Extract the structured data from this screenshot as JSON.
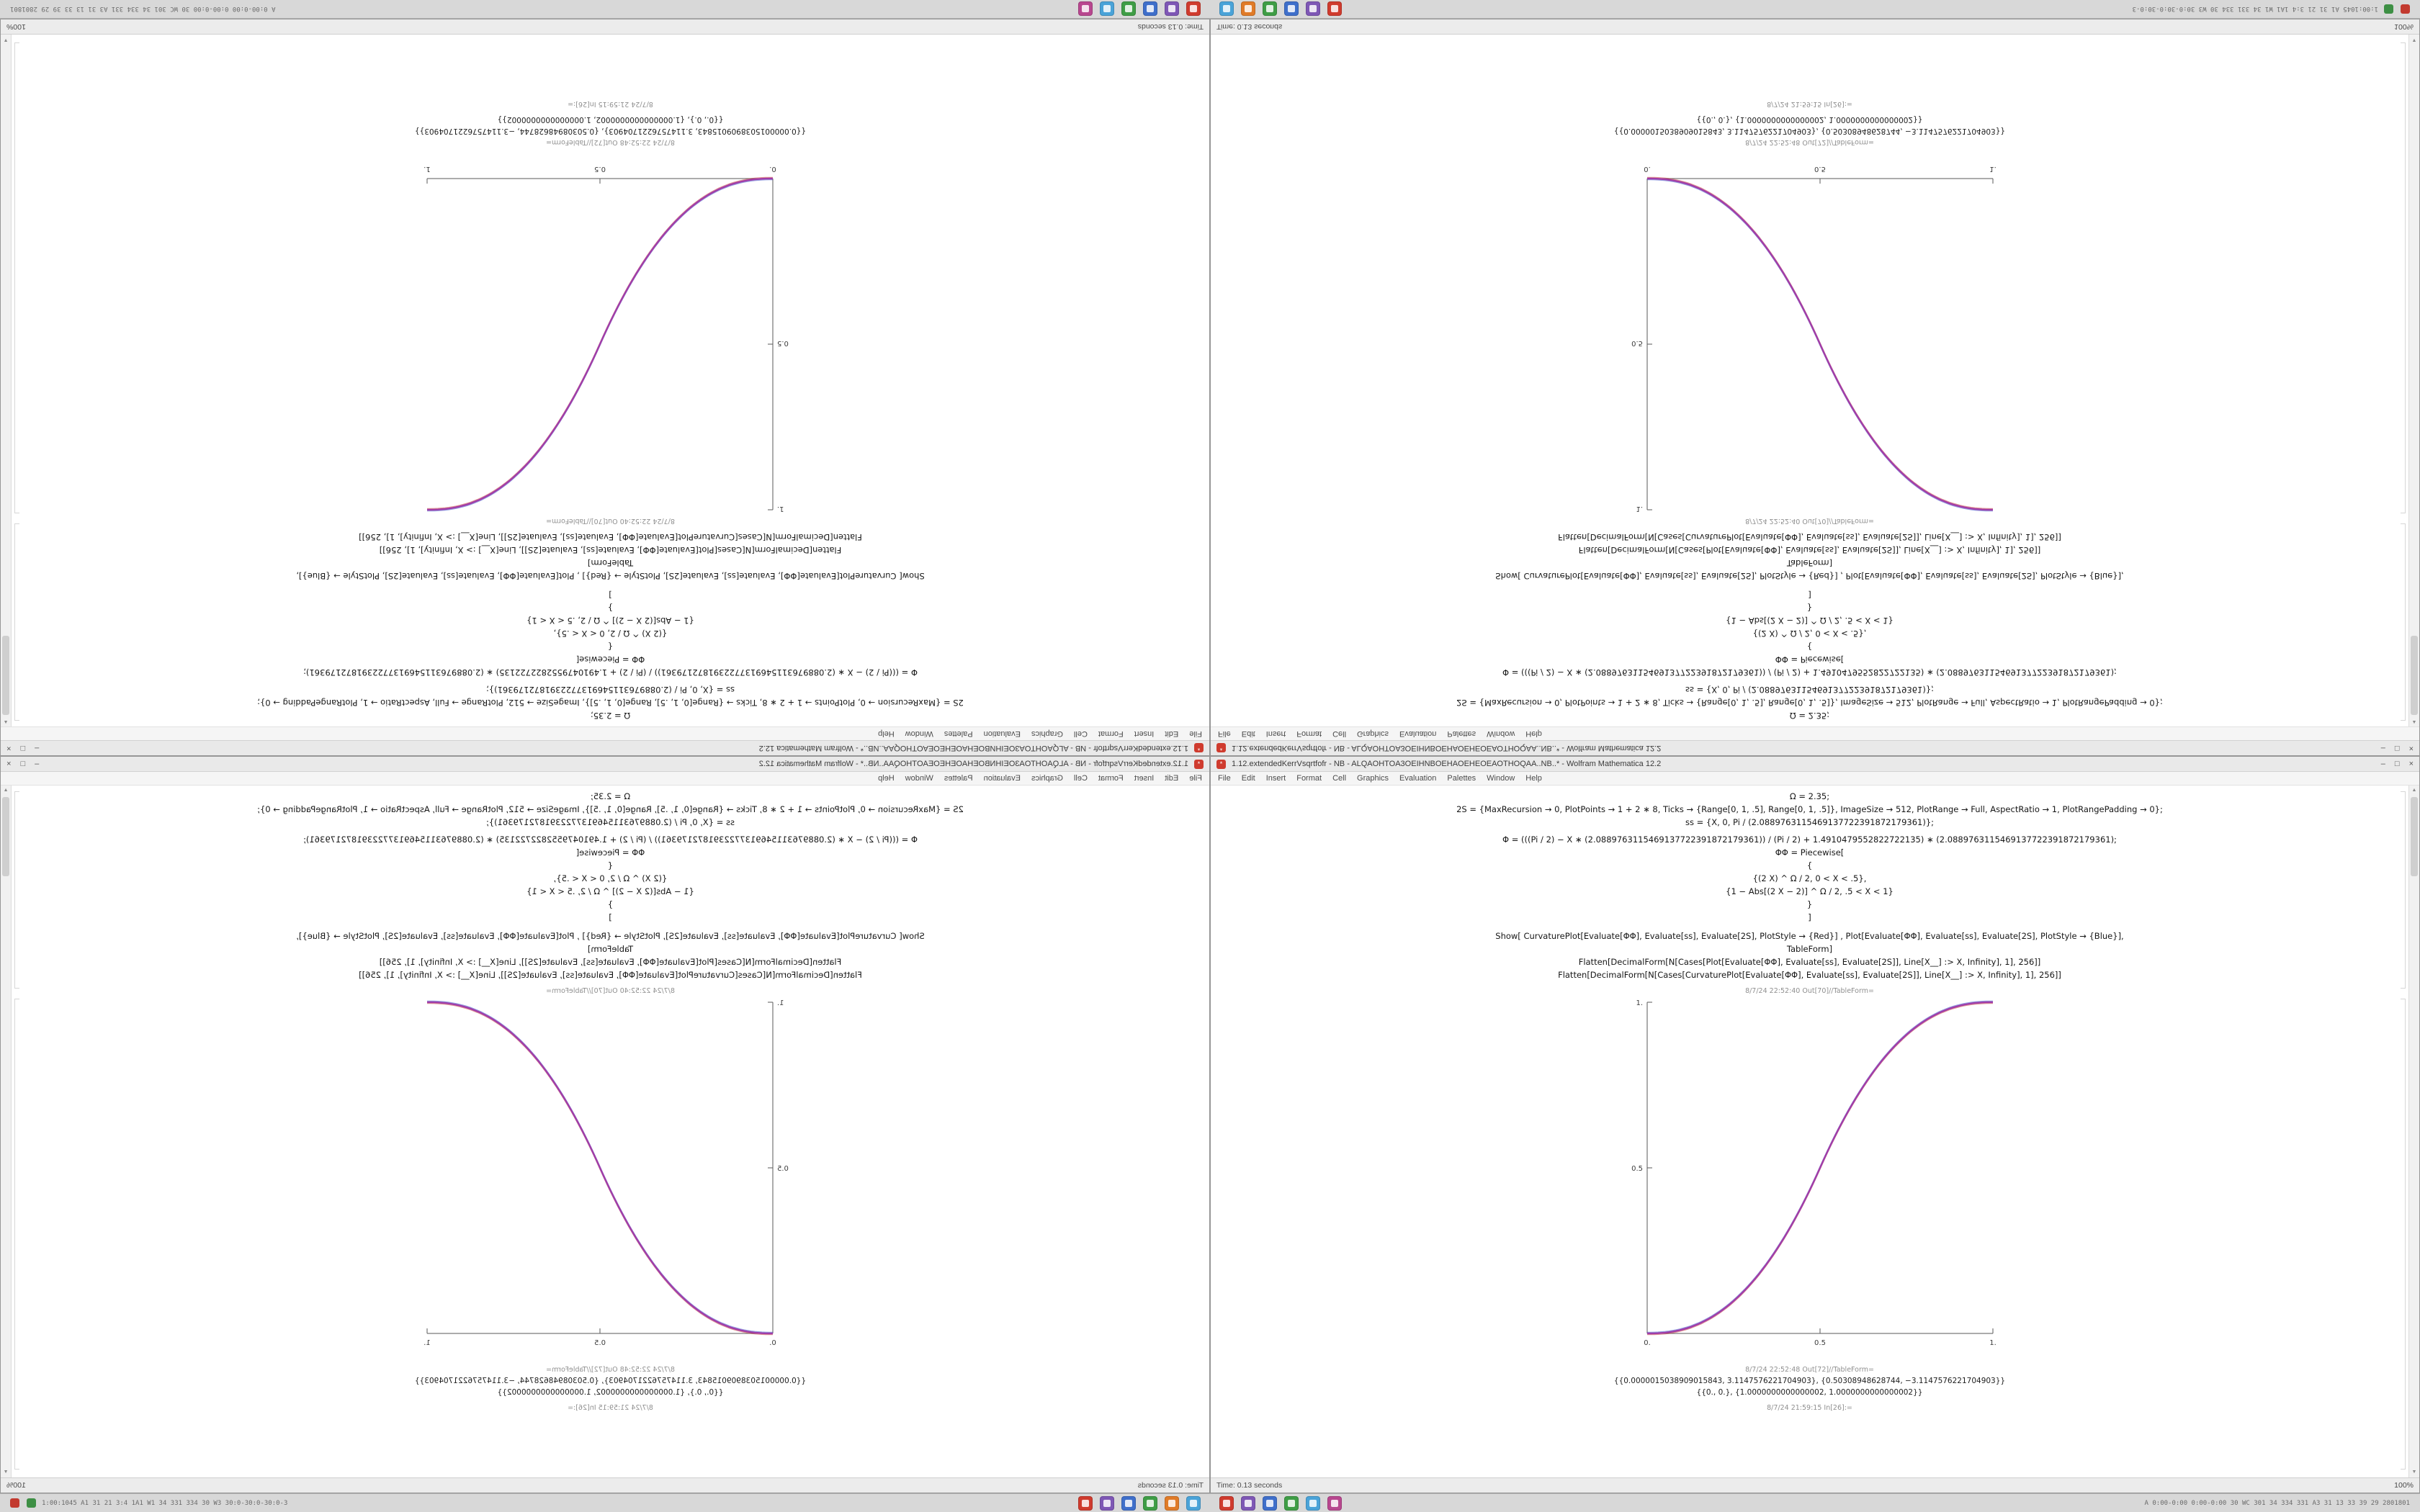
{
  "desktop": {
    "taskbar": {
      "stats_left": "1:00:1045 A1 31 21 3:4 1A1 W1 34 331 334 30 W3 30:0-30:0-30:0-3",
      "stats_right": "A 0:00-0:00 0:00-0:00 30 WC 301 34 334 331 A3 31 13 33 39 29 2801801",
      "tray_icons": [
        "#c23a2f",
        "#3d8f44"
      ],
      "group1": [
        "#cf3b2e",
        "#7e57b5",
        "#3f6fca",
        "#3f9d46",
        "#e07b28",
        "#4aa3d8"
      ],
      "group2": [
        "#cf3b2e",
        "#7e57b5",
        "#3f6fca",
        "#3f9d46",
        "#4aa3d8",
        "#b8478f"
      ]
    }
  },
  "window": {
    "title": "1.12.extendedKerrVsqrtfofr - NB - ALQAOHTOA3OEIHNBOEHAOEHEOEAOTHOQAA..NB..* - Wolfram Mathematica 12.2",
    "controls": {
      "minimize": "–",
      "maximize": "□",
      "close": "×"
    },
    "menu": [
      "File",
      "Edit",
      "Insert",
      "Format",
      "Cell",
      "Graphics",
      "Evaluation",
      "Palettes",
      "Window",
      "Help"
    ],
    "code_lines": [
      "Ω = 2.35;",
      "2S = {MaxRecursion → 0, PlotPoints → 1 + 2 ∗ 8, Ticks → {Range[0, 1, .5], Range[0, 1, .5]}, ImageSize → 512, PlotRange → Full, AspectRatio → 1, PlotRangePadding → 0};",
      "ss = {X, 0, Pi / (2.0889763115469137722391872179361)};",
      "Φ = (((Pi / 2) − X ∗ (2.0889763115469137722391872179361)) / (Pi / 2) + 1.4910479552822722135) ∗ (2.0889763115469137722391872179361);",
      "ΦΦ = Piecewise[",
      "{",
      "{(2 X) ^ Ω / 2, 0 < X < .5},",
      "{1 − Abs[(2 X − 2)] ^ Ω / 2, .5 < X < 1}",
      "}",
      "]",
      "Show[   CurvaturePlot[Evaluate[ΦΦ], Evaluate[ss], Evaluate[2S], PlotStyle → {Red}]  ,   Plot[Evaluate[ΦΦ], Evaluate[ss], Evaluate[2S], PlotStyle → {Blue}],",
      "TableForm]",
      "Flatten[DecimalForm[N[Cases[Plot[Evaluate[ΦΦ], Evaluate[ss], Evaluate[2S]], Line[X__] :> X, Infinity], 1], 256]]",
      "Flatten[DecimalForm[N[Cases[CurvaturePlot[Evaluate[ΦΦ], Evaluate[ss], Evaluate[2S]], Line[X__] :> X, Infinity], 1], 256]]"
    ],
    "cells": {
      "out1_label": "8/7/24 22:52:40  Out[70]//TableForm=",
      "out2_label": "8/7/24 22:52:48  Out[72]//TableForm=",
      "out2_lines": [
        "{{0.0000015038909015843, 3.1147576221704903}, {0.50308948628744, −3.1147576221704903}}",
        "{{0., 0.}, {1.0000000000000002, 1.0000000000000002}}"
      ],
      "next_in_label": "8/7/24 21:59:15  In[26]:="
    },
    "plot": {
      "type": "line",
      "x_ticks": [
        "0.",
        "0.5",
        "1."
      ],
      "y_ticks": [
        "0.5",
        "1."
      ],
      "x_range": [
        0,
        1
      ],
      "y_range": [
        0,
        1
      ],
      "omega": 2.35,
      "curve_color": "#a03da8",
      "series": [
        {
          "name": "CurvaturePlot",
          "color": "#c32a2a"
        },
        {
          "name": "Plot",
          "color": "#2a3ec3"
        }
      ]
    },
    "status": {
      "time": "Time: 0.13 seconds",
      "zoom": "100%"
    },
    "scrollbar": {
      "up": "▲",
      "down": "▼"
    }
  }
}
